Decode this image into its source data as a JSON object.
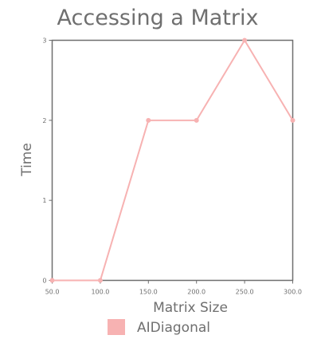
{
  "chart_data": {
    "type": "line",
    "title": "Accessing a Matrix",
    "xlabel": "Matrix Size",
    "ylabel": "Time",
    "x": [
      50.0,
      100.0,
      150.0,
      200.0,
      250.0,
      300.0
    ],
    "x_tick_labels": [
      "50.0",
      "100.0",
      "150.0",
      "200.0",
      "250.0",
      "300.0"
    ],
    "y_ticks": [
      0,
      1,
      2,
      3
    ],
    "y_tick_labels": [
      "0",
      "1",
      "2",
      "3"
    ],
    "xlim": [
      50,
      300
    ],
    "ylim": [
      0,
      3
    ],
    "grid": false,
    "legend_position": "bottom",
    "series": [
      {
        "name": "AIDiagonal",
        "values": [
          0,
          0,
          2,
          2,
          3,
          2
        ],
        "color": "#f7b2b2"
      }
    ]
  },
  "colors": {
    "axis": "#6f6f6f",
    "text": "#6f6f6f"
  }
}
